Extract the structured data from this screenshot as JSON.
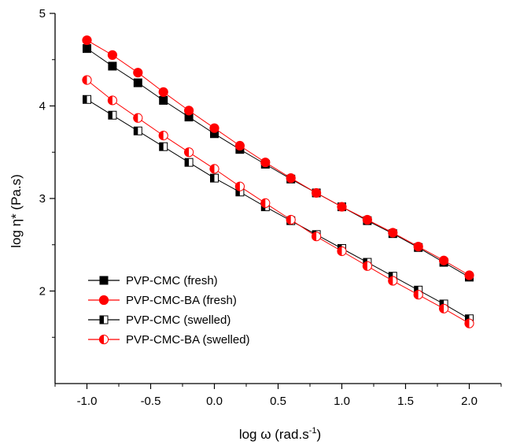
{
  "chart_data": {
    "type": "line",
    "title": "",
    "xlabel": "log ω (rad.s",
    "xlabel_sup": "-1",
    "xlabel_suffix": ")",
    "ylabel": "log η* (Pa.s)",
    "xlim": [
      -1.25,
      2.25
    ],
    "ylim": [
      1,
      5
    ],
    "x_ticks": [
      "-1.0",
      "-0.5",
      "0.0",
      "0.5",
      "1.0",
      "1.5",
      "2.0"
    ],
    "y_ticks": [
      "2",
      "3",
      "4",
      "5"
    ],
    "x": [
      -1.0,
      -0.8,
      -0.6,
      -0.4,
      -0.2,
      0.0,
      0.2,
      0.4,
      0.6,
      0.8,
      1.0,
      1.2,
      1.4,
      1.6,
      1.8,
      2.0
    ],
    "legend_position": "bottom-left",
    "grid": false,
    "series": [
      {
        "name": "PVP-CMC (fresh)",
        "color": "#000000",
        "marker": "square-filled",
        "values": [
          4.62,
          4.43,
          4.25,
          4.06,
          3.88,
          3.7,
          3.53,
          3.37,
          3.21,
          3.06,
          2.91,
          2.76,
          2.62,
          2.47,
          2.31,
          2.15
        ]
      },
      {
        "name": "PVP-CMC-BA (fresh)",
        "color": "#ff0000",
        "marker": "circle-filled",
        "values": [
          4.71,
          4.55,
          4.36,
          4.15,
          3.95,
          3.76,
          3.57,
          3.39,
          3.22,
          3.06,
          2.91,
          2.77,
          2.63,
          2.48,
          2.33,
          2.17
        ]
      },
      {
        "name": "PVP-CMC (swelled)",
        "color": "#000000",
        "marker": "square-half",
        "values": [
          4.07,
          3.9,
          3.73,
          3.56,
          3.39,
          3.22,
          3.07,
          2.91,
          2.76,
          2.61,
          2.46,
          2.31,
          2.16,
          2.01,
          1.86,
          1.7
        ]
      },
      {
        "name": "PVP-CMC-BA (swelled)",
        "color": "#ff0000",
        "marker": "circle-half",
        "values": [
          4.28,
          4.06,
          3.87,
          3.68,
          3.5,
          3.32,
          3.13,
          2.95,
          2.77,
          2.59,
          2.43,
          2.27,
          2.11,
          1.96,
          1.81,
          1.65
        ]
      }
    ]
  }
}
